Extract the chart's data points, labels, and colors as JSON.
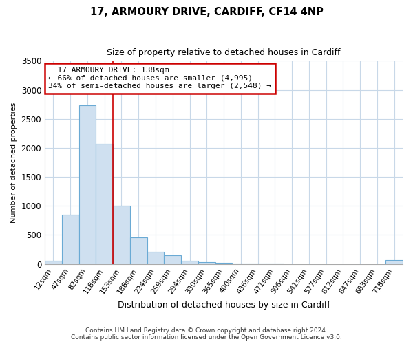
{
  "title_line1": "17, ARMOURY DRIVE, CARDIFF, CF14 4NP",
  "title_line2": "Size of property relative to detached houses in Cardiff",
  "xlabel": "Distribution of detached houses by size in Cardiff",
  "ylabel": "Number of detached properties",
  "bar_labels": [
    "12sqm",
    "47sqm",
    "82sqm",
    "118sqm",
    "153sqm",
    "188sqm",
    "224sqm",
    "259sqm",
    "294sqm",
    "330sqm",
    "365sqm",
    "400sqm",
    "436sqm",
    "471sqm",
    "506sqm",
    "541sqm",
    "577sqm",
    "612sqm",
    "647sqm",
    "683sqm",
    "718sqm"
  ],
  "bar_values": [
    50,
    850,
    2730,
    2070,
    1005,
    455,
    205,
    145,
    50,
    25,
    20,
    5,
    5,
    3,
    0,
    0,
    0,
    0,
    0,
    0,
    70
  ],
  "bar_color": "#cfe0f0",
  "bar_edge_color": "#6aaad4",
  "ylim": [
    0,
    3500
  ],
  "yticks": [
    0,
    500,
    1000,
    1500,
    2000,
    2500,
    3000,
    3500
  ],
  "marker_label": "17 ARMOURY DRIVE: 138sqm",
  "pct_smaller": "66% of detached houses are smaller (4,995)",
  "pct_larger": "34% of semi-detached houses are larger (2,548)",
  "annotation_box_color": "#ffffff",
  "annotation_box_edge_color": "#cc0000",
  "vline_color": "#cc0000",
  "vline_x": 3.5,
  "footer_line1": "Contains HM Land Registry data © Crown copyright and database right 2024.",
  "footer_line2": "Contains public sector information licensed under the Open Government Licence v3.0.",
  "grid_color": "#c8d8e8",
  "background_color": "#ffffff",
  "title_fontsize": 10.5,
  "subtitle_fontsize": 9,
  "ylabel_fontsize": 8,
  "xlabel_fontsize": 9
}
